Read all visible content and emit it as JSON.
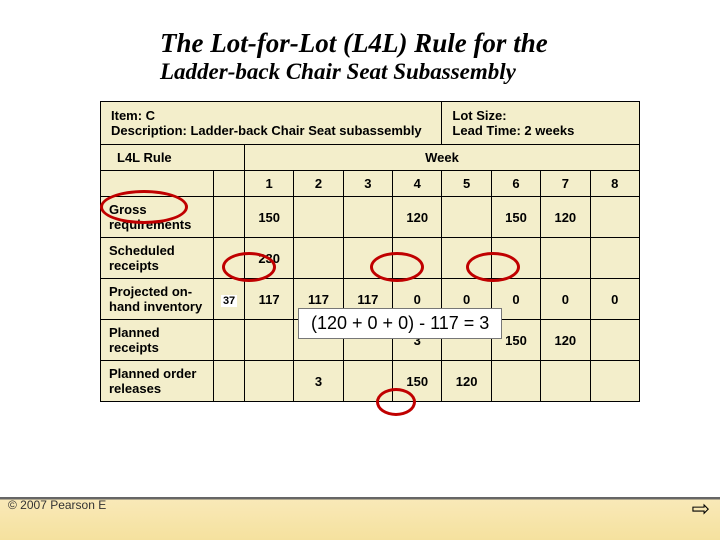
{
  "title": {
    "main": "The Lot-for-Lot (L4L) Rule for the",
    "sub": "Ladder-back Chair Seat Subassembly"
  },
  "header": {
    "item_label": "Item: C",
    "desc_label": "Description: Ladder-back Chair Seat subassembly",
    "lotsize_label": "Lot Size:",
    "leadtime_label": "Lead Time: 2 weeks"
  },
  "rule_label": "L4L Rule",
  "week_label": "Week",
  "weeks": [
    "1",
    "2",
    "3",
    "4",
    "5",
    "6",
    "7",
    "8"
  ],
  "rows": {
    "gross": {
      "label": "Gross requirements",
      "sub": "",
      "vals": [
        "150",
        "",
        "",
        "120",
        "",
        "150",
        "120",
        ""
      ]
    },
    "sched": {
      "label": "Scheduled receipts",
      "sub": "",
      "vals": [
        "230",
        "",
        "",
        "",
        "",
        "",
        "",
        ""
      ]
    },
    "proj": {
      "label": "Projected on-hand inventory",
      "sub": "37",
      "vals": [
        "117",
        "117",
        "117",
        "0",
        "0",
        "0",
        "0",
        "0"
      ]
    },
    "precv": {
      "label": "Planned receipts",
      "sub": "",
      "vals": [
        "",
        "",
        "",
        "3",
        "",
        "150",
        "120",
        ""
      ]
    },
    "prel": {
      "label": "Planned order releases",
      "sub": "",
      "vals": [
        "",
        "3",
        "",
        "150",
        "120",
        "",
        "",
        ""
      ]
    }
  },
  "formula": "(120 + 0 + 0) - 117 = 3",
  "footer": "© 2007 Pearson E",
  "arrow": "⇨",
  "colors": {
    "table_bg": "#f3eecb",
    "circle": "#c00000"
  }
}
